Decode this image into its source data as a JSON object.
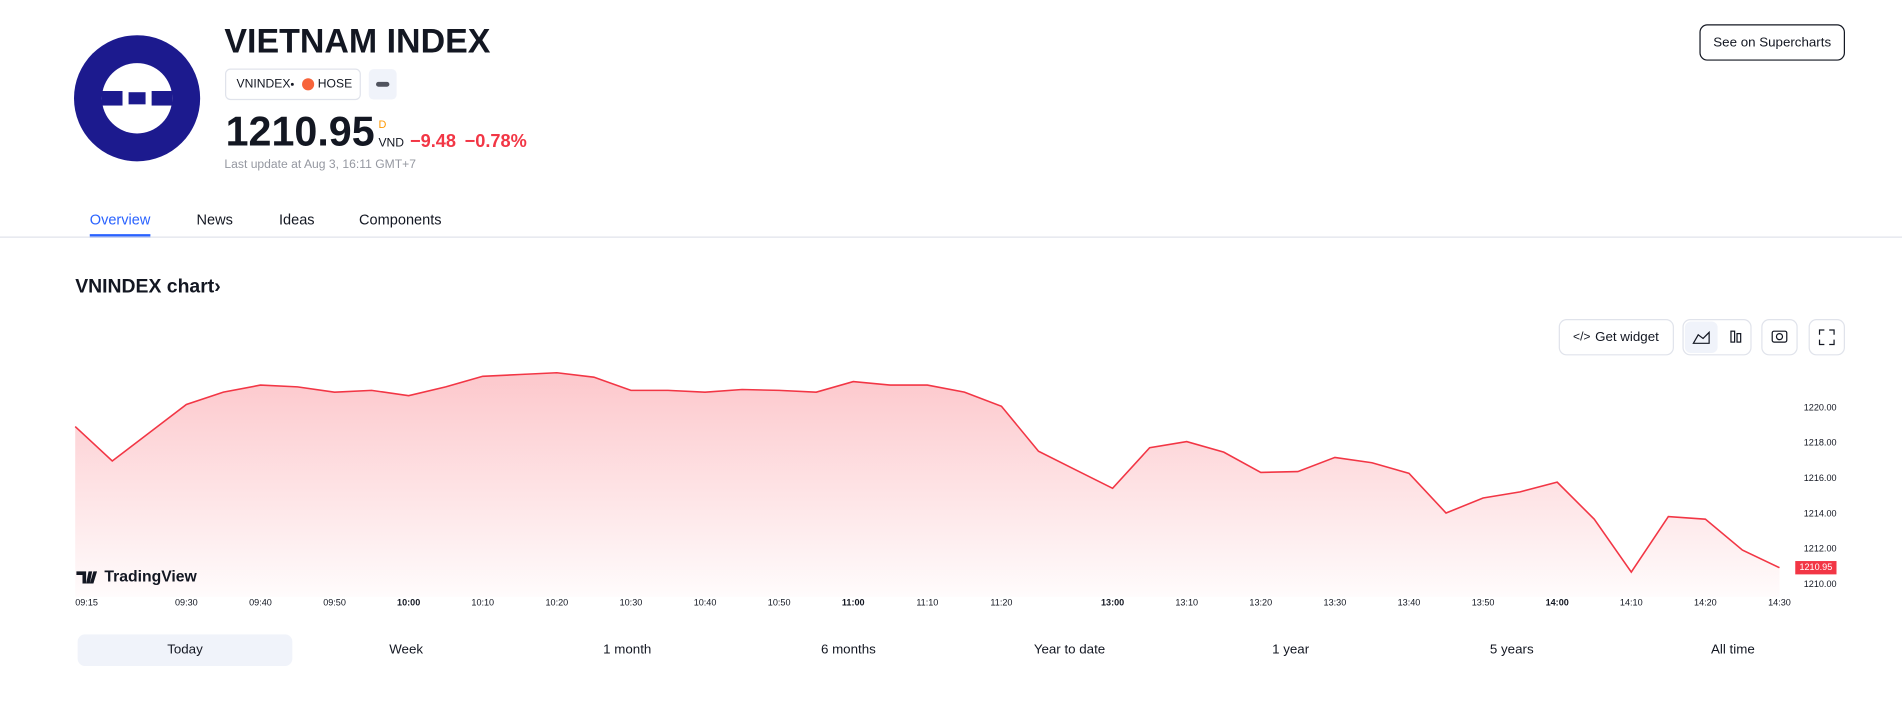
{
  "header": {
    "title": "VIETNAM INDEX",
    "symbol": "VNINDEX",
    "exchange": "HOSE",
    "price": "1210.95",
    "price_flag": "D",
    "currency": "VND",
    "change": "−9.48",
    "change_pct": "−0.78%",
    "last_update": "Last update at Aug 3, 16:11 GMT+7",
    "button": "See on Supercharts"
  },
  "tabs": [
    "Overview",
    "News",
    "Ideas",
    "Components"
  ],
  "section": {
    "title": "VNINDEX chart›",
    "widget": "Get widget",
    "brand": "TradingView"
  },
  "ranges": [
    "Today",
    "Week",
    "1 month",
    "6 months",
    "Year to date",
    "1 year",
    "5 years",
    "All time"
  ],
  "chart_data": {
    "type": "area",
    "color": "#f23645",
    "x": [
      "09:15",
      "09:20",
      "09:25",
      "09:30",
      "09:35",
      "09:40",
      "09:45",
      "09:50",
      "09:55",
      "10:00",
      "10:05",
      "10:10",
      "10:15",
      "10:20",
      "10:25",
      "10:30",
      "10:35",
      "10:40",
      "10:45",
      "10:50",
      "10:55",
      "11:00",
      "11:05",
      "11:10",
      "11:15",
      "11:20",
      "11:25",
      "11:30",
      "13:00",
      "13:05",
      "13:10",
      "13:15",
      "13:20",
      "13:25",
      "13:30",
      "13:35",
      "13:40",
      "13:45",
      "13:50",
      "13:55",
      "14:00",
      "14:05",
      "14:10",
      "14:15",
      "14:20",
      "14:25",
      "14:30"
    ],
    "series": [
      {
        "name": "VNINDEX",
        "color": "#f23645",
        "values": [
          1218.95,
          1217.0,
          1218.6,
          1220.2,
          1220.9,
          1221.3,
          1221.2,
          1220.9,
          1221.0,
          1220.7,
          1221.2,
          1221.8,
          1221.9,
          1222.0,
          1221.75,
          1221.0,
          1221.0,
          1220.9,
          1221.05,
          1221.0,
          1220.9,
          1221.5,
          1221.3,
          1221.3,
          1220.9,
          1220.1,
          1217.55,
          1216.5,
          1215.45,
          1217.75,
          1218.1,
          1217.5,
          1216.35,
          1216.4,
          1217.2,
          1216.9,
          1216.3,
          1214.05,
          1214.9,
          1215.25,
          1215.8,
          1213.7,
          1210.7,
          1213.85,
          1213.7,
          1211.95,
          1210.95
        ]
      }
    ],
    "xticks": [
      "09:15",
      "09:30",
      "09:40",
      "09:50",
      "10:00",
      "10:10",
      "10:20",
      "10:30",
      "10:40",
      "10:50",
      "11:00",
      "11:10",
      "11:20",
      "13:00",
      "13:10",
      "13:20",
      "13:30",
      "13:40",
      "13:50",
      "14:00",
      "14:10",
      "14:20",
      "14:30"
    ],
    "ylim": [
      1209.3,
      1222.5
    ],
    "yticks": [
      {
        "value": 1210,
        "label": "1210.00"
      },
      {
        "value": 1212,
        "label": "1212.00"
      },
      {
        "value": 1214,
        "label": "1214.00"
      },
      {
        "value": 1216,
        "label": "1216.00"
      },
      {
        "value": 1218,
        "label": "1218.00"
      },
      {
        "value": 1220,
        "label": "1220.00"
      }
    ]
  }
}
